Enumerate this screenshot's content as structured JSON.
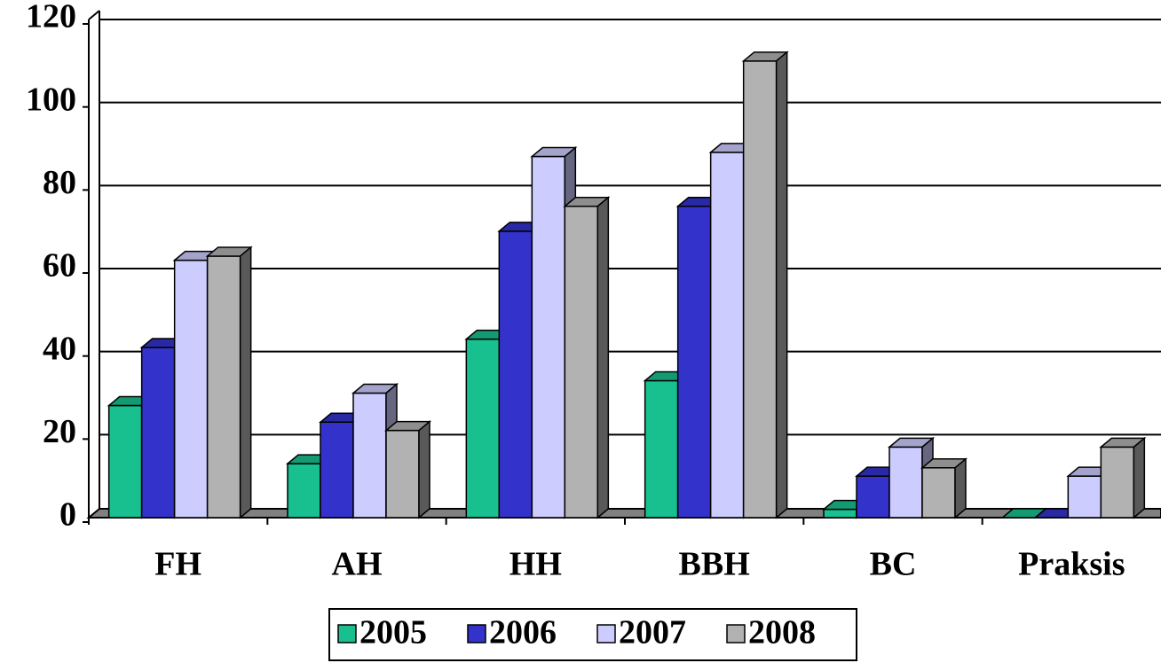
{
  "chart_data": {
    "type": "bar",
    "categories": [
      "FH",
      "AH",
      "HH",
      "BBH",
      "BC",
      "Praksis"
    ],
    "series": [
      {
        "name": "2005",
        "color": "#19c08f",
        "values": [
          27,
          13,
          43,
          33,
          2,
          0
        ]
      },
      {
        "name": "2006",
        "color": "#3333cc",
        "values": [
          41,
          23,
          69,
          75,
          10,
          0
        ]
      },
      {
        "name": "2007",
        "color": "#ccccff",
        "values": [
          62,
          30,
          87,
          88,
          17,
          10
        ]
      },
      {
        "name": "2008",
        "color": "#b2b2b2",
        "values": [
          63,
          21,
          75,
          110,
          12,
          17
        ]
      }
    ],
    "ylim": [
      0,
      120
    ],
    "yticks": [
      0,
      20,
      40,
      60,
      80,
      100,
      120
    ],
    "grid": true,
    "legend": "bottom"
  }
}
